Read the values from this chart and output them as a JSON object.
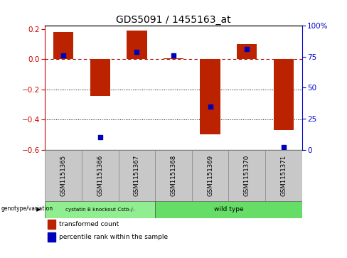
{
  "title": "GDS5091 / 1455163_at",
  "samples": [
    "GSM1151365",
    "GSM1151366",
    "GSM1151367",
    "GSM1151368",
    "GSM1151369",
    "GSM1151370",
    "GSM1151371"
  ],
  "transformed_count": [
    0.18,
    -0.245,
    0.19,
    0.005,
    -0.5,
    0.1,
    -0.47
  ],
  "percentile_rank": [
    76,
    10,
    79,
    76,
    35,
    81,
    2
  ],
  "bar_color": "#bb2200",
  "dot_color": "#0000bb",
  "ylim_left": [
    -0.6,
    0.22
  ],
  "ylim_right": [
    0,
    100
  ],
  "yticks_left": [
    0.2,
    0.0,
    -0.2,
    -0.4,
    -0.6
  ],
  "yticks_right": [
    100,
    75,
    50,
    25,
    0
  ],
  "hline_y": 0.0,
  "dotted_lines": [
    -0.2,
    -0.4
  ],
  "group1_label": "cystatin B knockout Cstb-/-",
  "group2_label": "wild type",
  "group1_count": 3,
  "group2_count": 4,
  "group1_color": "#90ee90",
  "group2_color": "#66dd66",
  "legend_bar_label": "transformed count",
  "legend_dot_label": "percentile rank within the sample",
  "genotype_label": "genotype/variation",
  "bar_width": 0.55,
  "background_label": "#c8c8c8"
}
